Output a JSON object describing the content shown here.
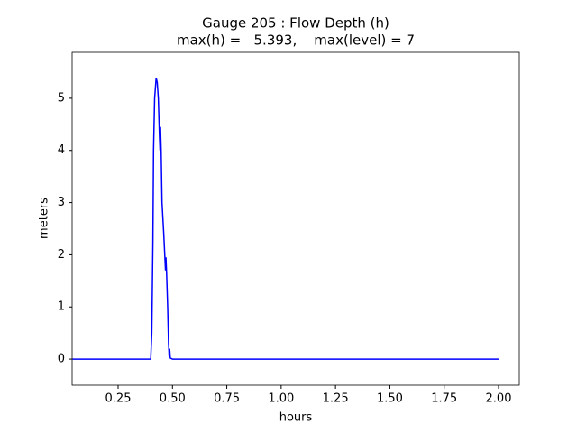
{
  "chart_data": {
    "type": "line",
    "title": "Gauge 205 : Flow Depth (h)",
    "subtitle": "max(h) =   5.393,    max(level) = 7",
    "x_label": "hours",
    "y_label": "meters",
    "x": [
      0.04,
      0.4,
      0.405,
      0.41,
      0.413,
      0.418,
      0.425,
      0.43,
      0.435,
      0.44,
      0.443,
      0.445,
      0.448,
      0.452,
      0.46,
      0.468,
      0.47,
      0.473,
      0.478,
      0.482,
      0.485,
      0.487,
      0.49,
      0.5,
      2.0
    ],
    "series": [
      {
        "name": "h",
        "color": "#0000ff",
        "values": [
          0,
          0,
          0.5,
          2.2,
          4.0,
          5.0,
          5.393,
          5.3,
          5.0,
          4.3,
          4.0,
          4.45,
          4.0,
          3.0,
          2.4,
          1.7,
          1.95,
          1.65,
          1.0,
          0.3,
          0.05,
          0.2,
          0.02,
          0,
          0
        ]
      }
    ],
    "xlim": [
      0.0385,
      2.0954
    ],
    "ylim": [
      -0.5,
      5.88
    ],
    "xticks": [
      0.25,
      {
        "value": 0.5,
        "label": "0.50"
      },
      {
        "value": 0.75,
        "label": "0.75"
      },
      {
        "value": 1,
        "label": "1.00"
      },
      1.25,
      {
        "value": 1.5,
        "label": "1.50"
      },
      1.75,
      {
        "value": 2,
        "label": "2.00"
      }
    ],
    "yticks": [
      0,
      1,
      2,
      3,
      4,
      5
    ]
  }
}
